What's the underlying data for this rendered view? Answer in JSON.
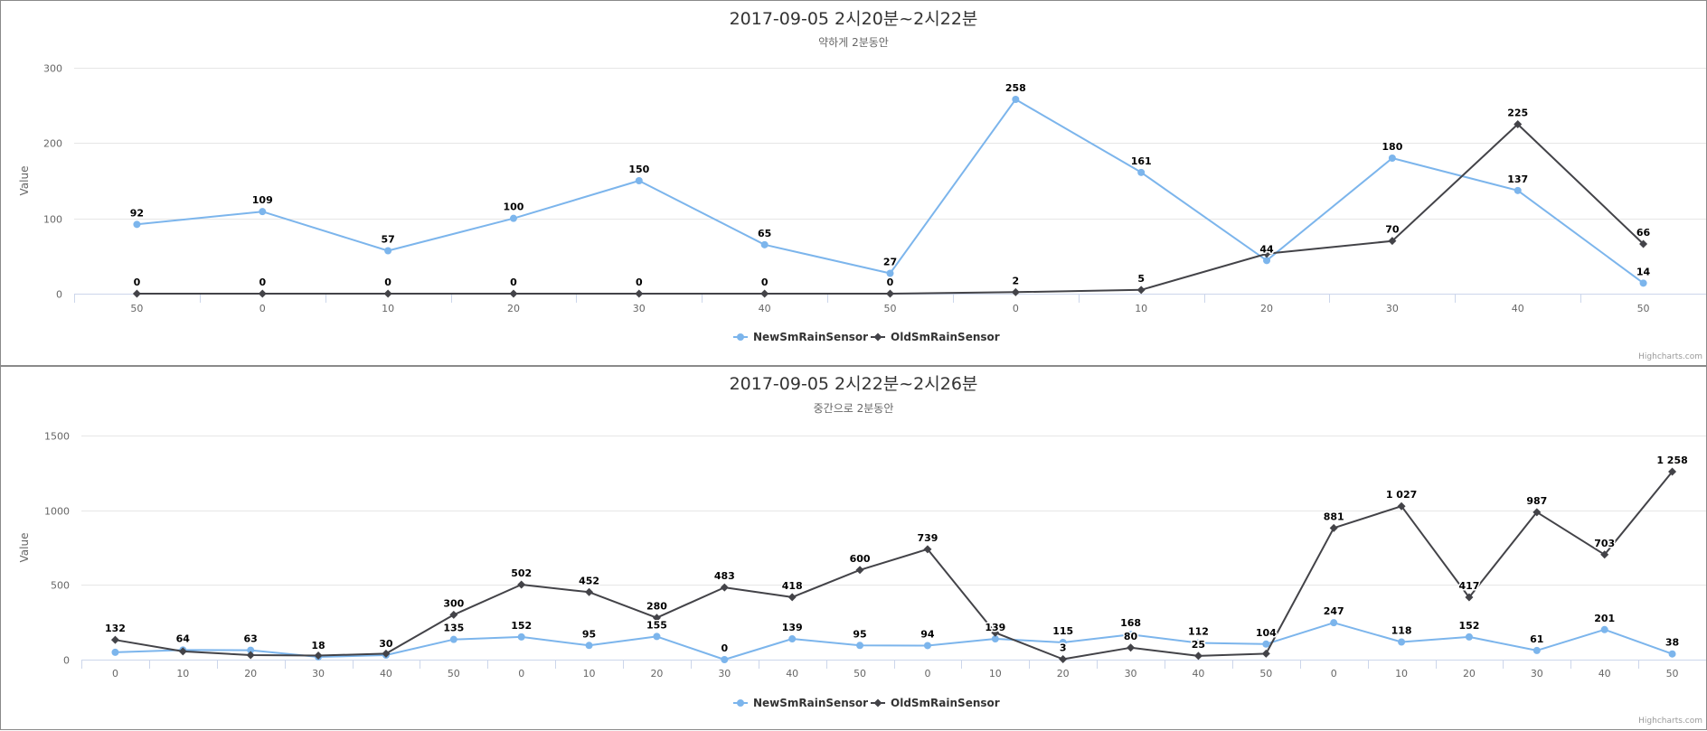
{
  "colors": {
    "new": "#7cb5ec",
    "old": "#434348",
    "grid": "#e6e6e6",
    "axis": "#ccd6eb"
  },
  "credits": "Highcharts.com",
  "chart_data": [
    {
      "type": "line",
      "title": "2017-09-05 2시20분~2시22분",
      "subtitle": "약하게 2분동안",
      "ylabel": "Value",
      "ylim": [
        0,
        300
      ],
      "yticks": [
        "0",
        "100",
        "200",
        "300"
      ],
      "categories": [
        "50",
        "0",
        "10",
        "20",
        "30",
        "40",
        "50",
        "0",
        "10",
        "20",
        "30",
        "40",
        "50"
      ],
      "legend_placement": "bottom-center",
      "grid": true,
      "series": [
        {
          "name": "NewSmRainSensor",
          "values": [
            92,
            109,
            57,
            100,
            150,
            65,
            27,
            258,
            161,
            44,
            180,
            137,
            14
          ],
          "labels": [
            "92",
            "109",
            "57",
            "100",
            "150",
            "65",
            "27",
            "258",
            "161",
            "44",
            "180",
            "137",
            "14"
          ]
        },
        {
          "name": "OldSmRainSensor",
          "values": [
            0,
            0,
            0,
            0,
            0,
            0,
            0,
            2,
            5,
            53,
            70,
            225,
            66
          ],
          "labels": [
            "0",
            "0",
            "0",
            "0",
            "0",
            "0",
            "0",
            "2",
            "5",
            "",
            "70",
            "225",
            "66"
          ]
        }
      ]
    },
    {
      "type": "line",
      "title": "2017-09-05 2시22분~2시26분",
      "subtitle": "중간으로 2분동안",
      "ylabel": "Value",
      "ylim": [
        0,
        1500
      ],
      "yticks": [
        "0",
        "500",
        "1000",
        "1500"
      ],
      "categories": [
        "0",
        "10",
        "20",
        "30",
        "40",
        "50",
        "0",
        "10",
        "20",
        "30",
        "40",
        "50",
        "0",
        "10",
        "20",
        "30",
        "40",
        "50",
        "0",
        "10",
        "20",
        "30",
        "40",
        "50"
      ],
      "legend_placement": "bottom-center",
      "grid": true,
      "series": [
        {
          "name": "NewSmRainSensor",
          "values": [
            49,
            64,
            63,
            18,
            30,
            135,
            152,
            95,
            155,
            0,
            139,
            95,
            94,
            139,
            115,
            168,
            112,
            104,
            247,
            118,
            152,
            61,
            201,
            38
          ],
          "labels": [
            "",
            "64",
            "63",
            "18",
            "30",
            "135",
            "152",
            "95",
            "155",
            "0",
            "139",
            "95",
            "94",
            "139",
            "115",
            "168",
            "112",
            "104",
            "247",
            "118",
            "152",
            "61",
            "201",
            "38"
          ]
        },
        {
          "name": "OldSmRainSensor",
          "values": [
            132,
            55,
            30,
            27,
            40,
            300,
            502,
            452,
            280,
            483,
            418,
            600,
            739,
            180,
            3,
            80,
            25,
            40,
            881,
            1027,
            417,
            987,
            703,
            1258
          ],
          "labels": [
            "132",
            "",
            "",
            "",
            "",
            "300",
            "502",
            "452",
            "280",
            "483",
            "418",
            "600",
            "739",
            "",
            "3",
            "80",
            "25",
            "",
            "881",
            "1 027",
            "417",
            "987",
            "703",
            "1 258"
          ]
        }
      ]
    }
  ]
}
